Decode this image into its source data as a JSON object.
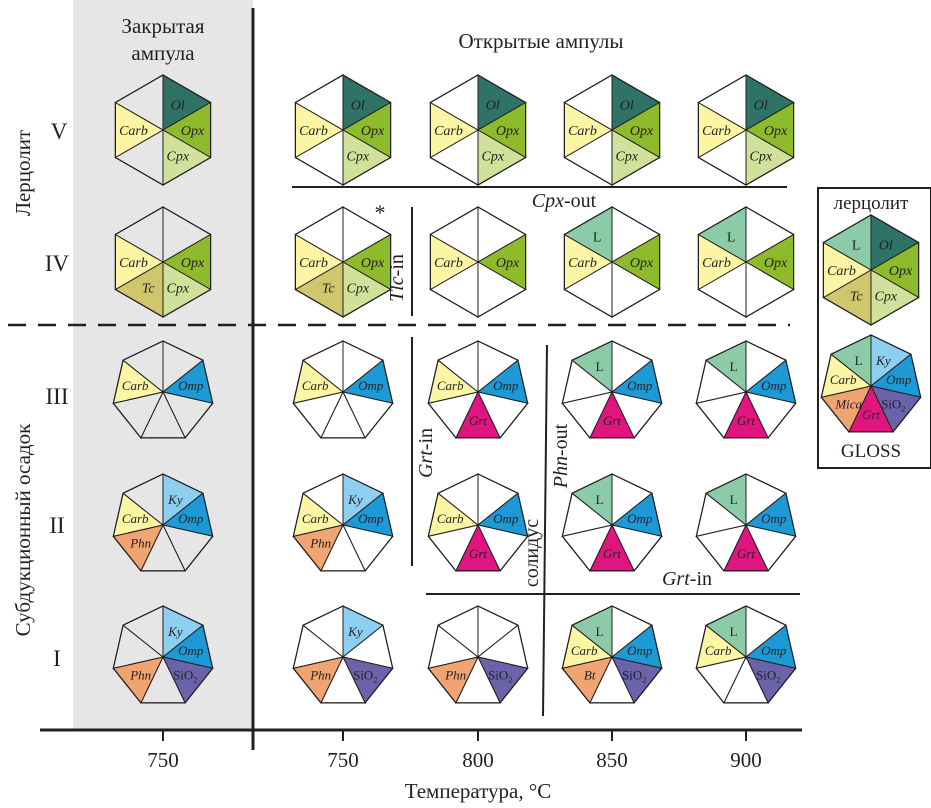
{
  "colors": {
    "closed_bg": "#e6e6e7",
    "empty": "#ffffff",
    "empty_closed": "#e6e6e7",
    "Ol": "#2e7366",
    "Opx": "#8ebb2b",
    "Cpx": "#cfe19a",
    "Carb": "#fbf5a4",
    "Tc": "#cfc66e",
    "L": "#8ccba7",
    "Omp": "#1d9ad6",
    "Grt": "#e0157f",
    "Ky": "#8dcff0",
    "Phn": "#f0a472",
    "Mica": "#f0a472",
    "SiO2": "#6a63aa",
    "Bt": "#f0a472"
  },
  "header": {
    "closed_title_line1": "Закрытая",
    "closed_title_line2": "ампула",
    "open_title": "Открытые ампулы"
  },
  "groups": {
    "lherzolite": "Лерцолит",
    "sediment": "Субдукционный осадок"
  },
  "rows": [
    "V",
    "IV",
    "III",
    "II",
    "I"
  ],
  "x_axis": {
    "ticks": [
      "750",
      "750",
      "800",
      "850",
      "900"
    ],
    "title": "Температура, °С"
  },
  "boundaries": {
    "cpx_out": {
      "italic": "Cpx",
      "rest": "-out"
    },
    "tlc_in": {
      "italic": "Tlc",
      "rest": "-in"
    },
    "grt_in_vertical": {
      "italic": "Grt",
      "rest": "-in"
    },
    "phn_out": {
      "italic": "Phn",
      "rest": "-out"
    },
    "solidus": "солидус",
    "grt_in_horizontal": {
      "italic": "Grt",
      "rest": "-in"
    },
    "asterisk": "*"
  },
  "legend": {
    "lherzolite_title": "лерцолит",
    "gloss_title": "GLOSS",
    "lherzolite_slices": [
      {
        "label": "Ol",
        "color": "Ol",
        "italic": true
      },
      {
        "label": "Opx",
        "color": "Opx",
        "italic": true
      },
      {
        "label": "Cpx",
        "color": "Cpx",
        "italic": true
      },
      {
        "label": "Tc",
        "color": "Tc",
        "italic": true
      },
      {
        "label": "Carb",
        "color": "Carb",
        "italic": true
      },
      {
        "label": "L",
        "color": "L",
        "italic": false
      }
    ],
    "gloss_slices": [
      {
        "label": "Ky",
        "color": "Ky",
        "italic": true
      },
      {
        "label": "Omp",
        "color": "Omp",
        "italic": true
      },
      {
        "label": "SiO2",
        "color": "SiO2",
        "italic": false,
        "chem": true
      },
      {
        "label": "Grt",
        "color": "Grt",
        "italic": true
      },
      {
        "label": "Mica",
        "color": "Mica",
        "italic": true
      },
      {
        "label": "Carb",
        "color": "Carb",
        "italic": true
      },
      {
        "label": "L",
        "color": "L",
        "italic": false
      }
    ]
  },
  "cells": [
    {
      "row": "V",
      "temp": "750 closed",
      "sides": 6,
      "closed": true,
      "slices": [
        {
          "label": "Ol",
          "color": "Ol",
          "italic": true
        },
        {
          "label": "Opx",
          "color": "Opx",
          "italic": true
        },
        {
          "label": "Cpx",
          "color": "Cpx",
          "italic": true
        },
        {
          "label": "",
          "color": "empty_closed"
        },
        {
          "label": "Carb",
          "color": "Carb",
          "italic": true
        },
        {
          "label": "",
          "color": "empty_closed"
        }
      ]
    },
    {
      "row": "V",
      "temp": "750",
      "sides": 6,
      "slices": [
        {
          "label": "Ol",
          "color": "Ol",
          "italic": true
        },
        {
          "label": "Opx",
          "color": "Opx",
          "italic": true
        },
        {
          "label": "Cpx",
          "color": "Cpx",
          "italic": true
        },
        {
          "label": "",
          "color": "empty"
        },
        {
          "label": "Carb",
          "color": "Carb",
          "italic": true
        },
        {
          "label": "",
          "color": "empty"
        }
      ]
    },
    {
      "row": "V",
      "temp": "800",
      "sides": 6,
      "slices": [
        {
          "label": "Ol",
          "color": "Ol",
          "italic": true
        },
        {
          "label": "Opx",
          "color": "Opx",
          "italic": true
        },
        {
          "label": "Cpx",
          "color": "Cpx",
          "italic": true
        },
        {
          "label": "",
          "color": "empty"
        },
        {
          "label": "Carb",
          "color": "Carb",
          "italic": true
        },
        {
          "label": "",
          "color": "empty"
        }
      ]
    },
    {
      "row": "V",
      "temp": "850",
      "sides": 6,
      "slices": [
        {
          "label": "Ol",
          "color": "Ol",
          "italic": true
        },
        {
          "label": "Opx",
          "color": "Opx",
          "italic": true
        },
        {
          "label": "Cpx",
          "color": "Cpx",
          "italic": true
        },
        {
          "label": "",
          "color": "empty"
        },
        {
          "label": "Carb",
          "color": "Carb",
          "italic": true
        },
        {
          "label": "",
          "color": "empty"
        }
      ]
    },
    {
      "row": "V",
      "temp": "900",
      "sides": 6,
      "slices": [
        {
          "label": "Ol",
          "color": "Ol",
          "italic": true
        },
        {
          "label": "Opx",
          "color": "Opx",
          "italic": true
        },
        {
          "label": "Cpx",
          "color": "Cpx",
          "italic": true
        },
        {
          "label": "",
          "color": "empty"
        },
        {
          "label": "Carb",
          "color": "Carb",
          "italic": true
        },
        {
          "label": "",
          "color": "empty"
        }
      ]
    },
    {
      "row": "IV",
      "temp": "750 closed",
      "sides": 6,
      "closed": true,
      "slices": [
        {
          "label": "",
          "color": "empty_closed"
        },
        {
          "label": "Opx",
          "color": "Opx",
          "italic": true
        },
        {
          "label": "Cpx",
          "color": "Cpx",
          "italic": true
        },
        {
          "label": "Tc",
          "color": "Tc",
          "italic": true
        },
        {
          "label": "Carb",
          "color": "Carb",
          "italic": true
        },
        {
          "label": "",
          "color": "empty_closed"
        }
      ]
    },
    {
      "row": "IV",
      "temp": "750",
      "sides": 6,
      "slices": [
        {
          "label": "",
          "color": "empty"
        },
        {
          "label": "Opx",
          "color": "Opx",
          "italic": true
        },
        {
          "label": "Cpx",
          "color": "Cpx",
          "italic": true
        },
        {
          "label": "Tc",
          "color": "Tc",
          "italic": true
        },
        {
          "label": "Carb",
          "color": "Carb",
          "italic": true
        },
        {
          "label": "",
          "color": "empty"
        }
      ]
    },
    {
      "row": "IV",
      "temp": "800",
      "sides": 6,
      "slices": [
        {
          "label": "",
          "color": "empty"
        },
        {
          "label": "Opx",
          "color": "Opx",
          "italic": true
        },
        {
          "label": "",
          "color": "empty"
        },
        {
          "label": "",
          "color": "empty"
        },
        {
          "label": "Carb",
          "color": "Carb",
          "italic": true
        },
        {
          "label": "",
          "color": "empty"
        }
      ]
    },
    {
      "row": "IV",
      "temp": "850",
      "sides": 6,
      "slices": [
        {
          "label": "",
          "color": "empty"
        },
        {
          "label": "Opx",
          "color": "Opx",
          "italic": true
        },
        {
          "label": "",
          "color": "empty"
        },
        {
          "label": "",
          "color": "empty"
        },
        {
          "label": "Carb",
          "color": "Carb",
          "italic": true
        },
        {
          "label": "L",
          "color": "L",
          "italic": false
        }
      ]
    },
    {
      "row": "IV",
      "temp": "900",
      "sides": 6,
      "slices": [
        {
          "label": "",
          "color": "empty"
        },
        {
          "label": "Opx",
          "color": "Opx",
          "italic": true
        },
        {
          "label": "",
          "color": "empty"
        },
        {
          "label": "",
          "color": "empty"
        },
        {
          "label": "Carb",
          "color": "Carb",
          "italic": true
        },
        {
          "label": "L",
          "color": "L",
          "italic": false
        }
      ]
    },
    {
      "row": "III",
      "temp": "750 closed",
      "sides": 7,
      "closed": true,
      "slices": [
        {
          "label": "",
          "color": "empty_closed"
        },
        {
          "label": "Omp",
          "color": "Omp",
          "italic": true
        },
        {
          "label": "",
          "color": "empty_closed"
        },
        {
          "label": "",
          "color": "empty_closed"
        },
        {
          "label": "",
          "color": "empty_closed"
        },
        {
          "label": "Carb",
          "color": "Carb",
          "italic": true
        },
        {
          "label": "",
          "color": "empty_closed"
        }
      ]
    },
    {
      "row": "III",
      "temp": "750",
      "sides": 7,
      "slices": [
        {
          "label": "",
          "color": "empty"
        },
        {
          "label": "Omp",
          "color": "Omp",
          "italic": true
        },
        {
          "label": "",
          "color": "empty"
        },
        {
          "label": "",
          "color": "empty"
        },
        {
          "label": "",
          "color": "empty"
        },
        {
          "label": "Carb",
          "color": "Carb",
          "italic": true
        },
        {
          "label": "",
          "color": "empty"
        }
      ]
    },
    {
      "row": "III",
      "temp": "800",
      "sides": 7,
      "slices": [
        {
          "label": "",
          "color": "empty"
        },
        {
          "label": "Omp",
          "color": "Omp",
          "italic": true
        },
        {
          "label": "",
          "color": "empty"
        },
        {
          "label": "Grt",
          "color": "Grt",
          "italic": true
        },
        {
          "label": "",
          "color": "empty"
        },
        {
          "label": "Carb",
          "color": "Carb",
          "italic": true
        },
        {
          "label": "",
          "color": "empty"
        }
      ]
    },
    {
      "row": "III",
      "temp": "850",
      "sides": 7,
      "slices": [
        {
          "label": "",
          "color": "empty"
        },
        {
          "label": "Omp",
          "color": "Omp",
          "italic": true
        },
        {
          "label": "",
          "color": "empty"
        },
        {
          "label": "Grt",
          "color": "Grt",
          "italic": true
        },
        {
          "label": "",
          "color": "empty"
        },
        {
          "label": "",
          "color": "empty"
        },
        {
          "label": "L",
          "color": "L",
          "italic": false
        }
      ]
    },
    {
      "row": "III",
      "temp": "900",
      "sides": 7,
      "slices": [
        {
          "label": "",
          "color": "empty"
        },
        {
          "label": "Omp",
          "color": "Omp",
          "italic": true
        },
        {
          "label": "",
          "color": "empty"
        },
        {
          "label": "Grt",
          "color": "Grt",
          "italic": true
        },
        {
          "label": "",
          "color": "empty"
        },
        {
          "label": "",
          "color": "empty"
        },
        {
          "label": "L",
          "color": "L",
          "italic": false
        }
      ]
    },
    {
      "row": "II",
      "temp": "750 closed",
      "sides": 7,
      "closed": true,
      "slices": [
        {
          "label": "Ky",
          "color": "Ky",
          "italic": true
        },
        {
          "label": "Omp",
          "color": "Omp",
          "italic": true
        },
        {
          "label": "",
          "color": "empty_closed"
        },
        {
          "label": "",
          "color": "empty_closed"
        },
        {
          "label": "Phn",
          "color": "Phn",
          "italic": true
        },
        {
          "label": "Carb",
          "color": "Carb",
          "italic": true
        },
        {
          "label": "",
          "color": "empty_closed"
        }
      ]
    },
    {
      "row": "II",
      "temp": "750",
      "sides": 7,
      "slices": [
        {
          "label": "Ky",
          "color": "Ky",
          "italic": true
        },
        {
          "label": "Omp",
          "color": "Omp",
          "italic": true
        },
        {
          "label": "",
          "color": "empty"
        },
        {
          "label": "",
          "color": "empty"
        },
        {
          "label": "Phn",
          "color": "Phn",
          "italic": true
        },
        {
          "label": "Carb",
          "color": "Carb",
          "italic": true
        },
        {
          "label": "",
          "color": "empty"
        }
      ]
    },
    {
      "row": "II",
      "temp": "800",
      "sides": 7,
      "slices": [
        {
          "label": "",
          "color": "empty"
        },
        {
          "label": "Omp",
          "color": "Omp",
          "italic": true
        },
        {
          "label": "",
          "color": "empty"
        },
        {
          "label": "Grt",
          "color": "Grt",
          "italic": true
        },
        {
          "label": "",
          "color": "empty"
        },
        {
          "label": "Carb",
          "color": "Carb",
          "italic": true
        },
        {
          "label": "",
          "color": "empty"
        }
      ]
    },
    {
      "row": "II",
      "temp": "850",
      "sides": 7,
      "slices": [
        {
          "label": "",
          "color": "empty"
        },
        {
          "label": "Omp",
          "color": "Omp",
          "italic": true
        },
        {
          "label": "",
          "color": "empty"
        },
        {
          "label": "Grt",
          "color": "Grt",
          "italic": true
        },
        {
          "label": "",
          "color": "empty"
        },
        {
          "label": "",
          "color": "empty"
        },
        {
          "label": "L",
          "color": "L",
          "italic": false
        }
      ]
    },
    {
      "row": "II",
      "temp": "900",
      "sides": 7,
      "slices": [
        {
          "label": "",
          "color": "empty"
        },
        {
          "label": "Omp",
          "color": "Omp",
          "italic": true
        },
        {
          "label": "",
          "color": "empty"
        },
        {
          "label": "Grt",
          "color": "Grt",
          "italic": true
        },
        {
          "label": "",
          "color": "empty"
        },
        {
          "label": "",
          "color": "empty"
        },
        {
          "label": "L",
          "color": "L",
          "italic": false
        }
      ]
    },
    {
      "row": "I",
      "temp": "750 closed",
      "sides": 7,
      "closed": true,
      "slices": [
        {
          "label": "Ky",
          "color": "Ky",
          "italic": true
        },
        {
          "label": "Omp",
          "color": "Omp",
          "italic": true
        },
        {
          "label": "SiO2",
          "color": "SiO2",
          "chem": true
        },
        {
          "label": "",
          "color": "empty_closed"
        },
        {
          "label": "Phn",
          "color": "Phn",
          "italic": true
        },
        {
          "label": "",
          "color": "empty_closed"
        },
        {
          "label": "",
          "color": "empty_closed"
        }
      ]
    },
    {
      "row": "I",
      "temp": "750",
      "sides": 7,
      "slices": [
        {
          "label": "Ky",
          "color": "Ky",
          "italic": true
        },
        {
          "label": "",
          "color": "empty"
        },
        {
          "label": "SiO2",
          "color": "SiO2",
          "chem": true
        },
        {
          "label": "",
          "color": "empty"
        },
        {
          "label": "Phn",
          "color": "Phn",
          "italic": true
        },
        {
          "label": "",
          "color": "empty"
        },
        {
          "label": "",
          "color": "empty"
        }
      ]
    },
    {
      "row": "I",
      "temp": "800",
      "sides": 7,
      "slices": [
        {
          "label": "",
          "color": "empty"
        },
        {
          "label": "",
          "color": "empty"
        },
        {
          "label": "SiO2",
          "color": "SiO2",
          "chem": true
        },
        {
          "label": "",
          "color": "empty"
        },
        {
          "label": "Phn",
          "color": "Phn",
          "italic": true
        },
        {
          "label": "",
          "color": "empty"
        },
        {
          "label": "",
          "color": "empty"
        }
      ]
    },
    {
      "row": "I",
      "temp": "850",
      "sides": 7,
      "slices": [
        {
          "label": "",
          "color": "empty"
        },
        {
          "label": "Omp",
          "color": "Omp",
          "italic": true
        },
        {
          "label": "SiO2",
          "color": "SiO2",
          "chem": true
        },
        {
          "label": "",
          "color": "empty"
        },
        {
          "label": "Bt",
          "color": "Bt",
          "italic": true
        },
        {
          "label": "Carb",
          "color": "Carb",
          "italic": true
        },
        {
          "label": "L",
          "color": "L",
          "italic": false
        }
      ]
    },
    {
      "row": "I",
      "temp": "900",
      "sides": 7,
      "slices": [
        {
          "label": "",
          "color": "empty"
        },
        {
          "label": "Omp",
          "color": "Omp",
          "italic": true
        },
        {
          "label": "SiO2",
          "color": "SiO2",
          "chem": true
        },
        {
          "label": "",
          "color": "empty"
        },
        {
          "label": "",
          "color": "empty"
        },
        {
          "label": "Carb",
          "color": "Carb",
          "italic": true
        },
        {
          "label": "L",
          "color": "L",
          "italic": false
        }
      ]
    }
  ]
}
